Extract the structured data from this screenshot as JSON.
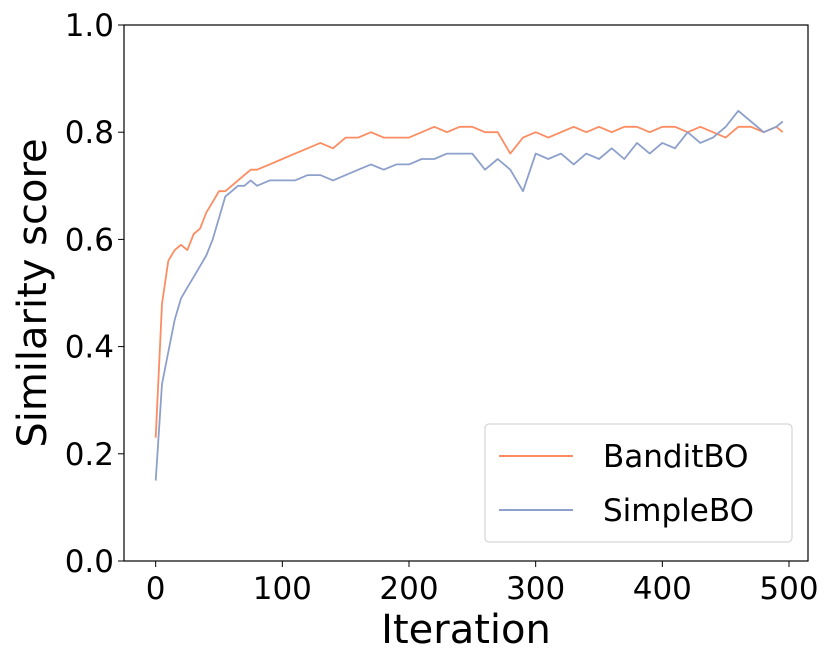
{
  "chart_data": {
    "type": "line",
    "xlabel": "Iteration",
    "ylabel": "Similarity score",
    "xlim": [
      -25,
      515
    ],
    "ylim": [
      0.0,
      1.0
    ],
    "xticks": [
      0,
      100,
      200,
      300,
      400,
      500
    ],
    "yticks": [
      0.0,
      0.2,
      0.4,
      0.6,
      0.8,
      1.0
    ],
    "xtick_labels": [
      "0",
      "100",
      "200",
      "300",
      "400",
      "500"
    ],
    "ytick_labels": [
      "0.0",
      "0.2",
      "0.4",
      "0.6",
      "0.8",
      "1.0"
    ],
    "grid": false,
    "legend_position": "lower-right",
    "x": [
      0,
      5,
      10,
      15,
      20,
      25,
      30,
      35,
      40,
      45,
      50,
      55,
      60,
      65,
      70,
      75,
      80,
      90,
      100,
      110,
      120,
      130,
      140,
      150,
      160,
      170,
      180,
      190,
      200,
      210,
      220,
      230,
      240,
      250,
      260,
      270,
      280,
      290,
      300,
      310,
      320,
      330,
      340,
      350,
      360,
      370,
      380,
      390,
      400,
      410,
      420,
      430,
      440,
      450,
      460,
      470,
      480,
      490,
      495
    ],
    "series": [
      {
        "name": "BanditBO",
        "color": "#fc8d62",
        "values": [
          0.23,
          0.48,
          0.56,
          0.58,
          0.59,
          0.58,
          0.61,
          0.62,
          0.65,
          0.67,
          0.69,
          0.69,
          0.7,
          0.71,
          0.72,
          0.73,
          0.73,
          0.74,
          0.75,
          0.76,
          0.77,
          0.78,
          0.77,
          0.79,
          0.79,
          0.8,
          0.79,
          0.79,
          0.79,
          0.8,
          0.81,
          0.8,
          0.81,
          0.81,
          0.8,
          0.8,
          0.76,
          0.79,
          0.8,
          0.79,
          0.8,
          0.81,
          0.8,
          0.81,
          0.8,
          0.81,
          0.81,
          0.8,
          0.81,
          0.81,
          0.8,
          0.81,
          0.8,
          0.79,
          0.81,
          0.81,
          0.8,
          0.81,
          0.8
        ]
      },
      {
        "name": "SimpleBO",
        "color": "#8da0cb",
        "values": [
          0.15,
          0.33,
          0.39,
          0.45,
          0.49,
          0.51,
          0.53,
          0.55,
          0.57,
          0.6,
          0.64,
          0.68,
          0.69,
          0.7,
          0.7,
          0.71,
          0.7,
          0.71,
          0.71,
          0.71,
          0.72,
          0.72,
          0.71,
          0.72,
          0.73,
          0.74,
          0.73,
          0.74,
          0.74,
          0.75,
          0.75,
          0.76,
          0.76,
          0.76,
          0.73,
          0.75,
          0.73,
          0.69,
          0.76,
          0.75,
          0.76,
          0.74,
          0.76,
          0.75,
          0.77,
          0.75,
          0.78,
          0.76,
          0.78,
          0.77,
          0.8,
          0.78,
          0.79,
          0.81,
          0.84,
          0.82,
          0.8,
          0.81,
          0.82
        ]
      }
    ]
  }
}
